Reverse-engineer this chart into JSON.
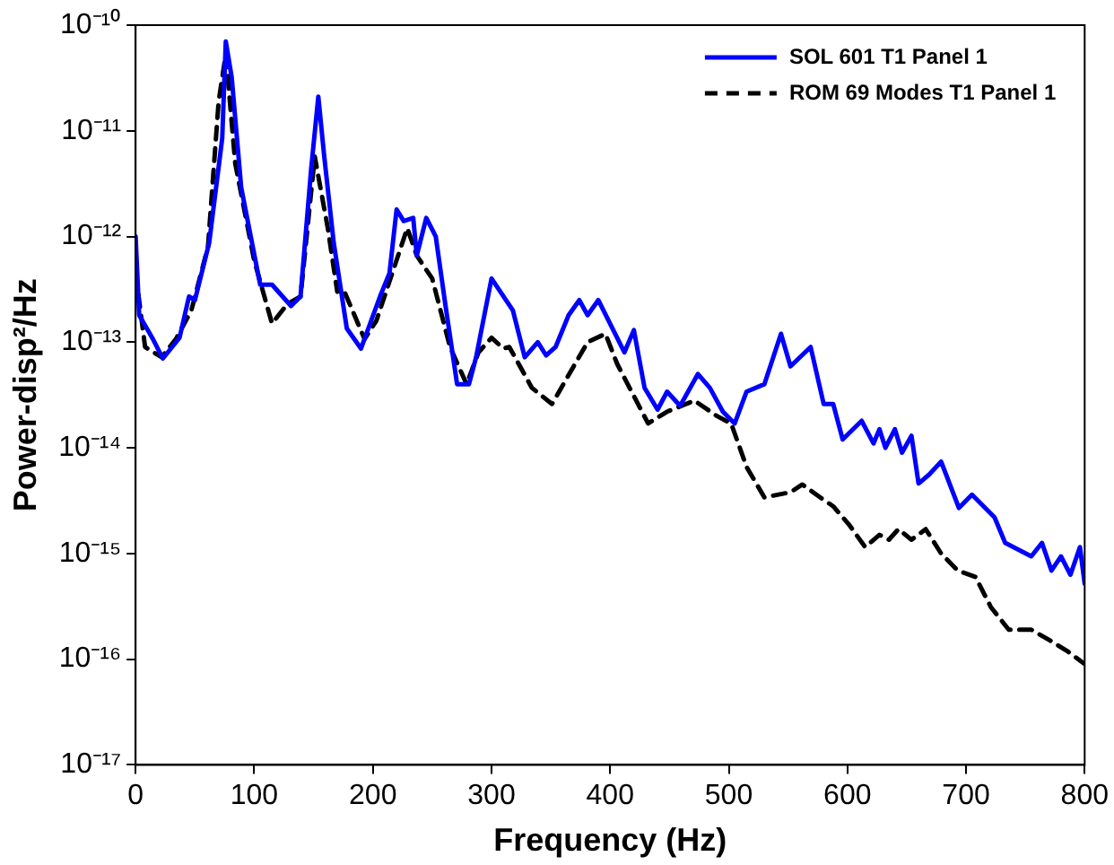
{
  "chart_data": {
    "type": "line",
    "xlabel": "Frequency (Hz)",
    "ylabel": "Power-disp²/Hz",
    "log": "y",
    "grid": false,
    "legend": "top right",
    "marker": "none",
    "xlim": [
      0,
      800
    ],
    "xticks": [
      0,
      100,
      200,
      300,
      400,
      500,
      600,
      700,
      800
    ],
    "ylim": [
      1e-17,
      1e-10
    ],
    "yticks": [
      {
        "value": 1e-17,
        "label": "10⁻¹⁷"
      },
      {
        "value": 1e-16,
        "label": "10⁻¹⁶"
      },
      {
        "value": 1e-15,
        "label": "10⁻¹⁵"
      },
      {
        "value": 1e-14,
        "label": "10⁻¹⁴"
      },
      {
        "value": 1e-13,
        "label": "10⁻¹³"
      },
      {
        "value": 1e-12,
        "label": "10⁻¹²"
      },
      {
        "value": 1e-11,
        "label": "10⁻¹¹"
      },
      {
        "value": 1e-10,
        "label": "10⁻¹⁰"
      }
    ],
    "series": [
      {
        "name": "SOL 601 T1 Panel 1",
        "color": "#0000ff",
        "line_style": "solid",
        "x": [
          0,
          3,
          14,
          23,
          37,
          45,
          50,
          62,
          73,
          76,
          81,
          89,
          105,
          115,
          131,
          139,
          148,
          154,
          159,
          167,
          178,
          190,
          206,
          214,
          220,
          226,
          234,
          237,
          245,
          253,
          261,
          271,
          281,
          287,
          300,
          318,
          328,
          339,
          346,
          354,
          365,
          374,
          381,
          390,
          412,
          420,
          429,
          440,
          448,
          459,
          474,
          484,
          495,
          505,
          515,
          530,
          544,
          552,
          569,
          580,
          588,
          596,
          612,
          622,
          627,
          632,
          640,
          646,
          654,
          660,
          669,
          679,
          694,
          705,
          724,
          733,
          755,
          764,
          772,
          780,
          788,
          796,
          800
        ],
        "values": [
          1e-12,
          1.8e-13,
          1.1e-13,
          7e-14,
          1.1e-13,
          2.7e-13,
          2.5e-13,
          8.7e-13,
          8.5e-12,
          7e-11,
          3.2e-11,
          2.9e-12,
          3.5e-13,
          3.5e-13,
          2.2e-13,
          2.7e-13,
          4.4e-12,
          2.1e-11,
          5.7e-12,
          8.7e-13,
          1.35e-13,
          8.7e-14,
          2.7e-13,
          4.5e-13,
          1.8e-12,
          1.4e-12,
          1.5e-12,
          6.6e-13,
          1.5e-12,
          1e-12,
          2.3e-13,
          4e-14,
          4e-14,
          7.2e-14,
          4e-13,
          2e-13,
          7.2e-14,
          1e-13,
          7.5e-14,
          9e-14,
          1.8e-13,
          2.5e-13,
          1.8e-13,
          2.5e-13,
          8e-14,
          1.3e-13,
          3.7e-14,
          2.3e-14,
          3.4e-14,
          2.5e-14,
          5e-14,
          3.7e-14,
          2.2e-14,
          1.7e-14,
          3.4e-14,
          4e-14,
          1.2e-13,
          5.9e-14,
          9e-14,
          2.6e-14,
          2.6e-14,
          1.2e-14,
          1.8e-14,
          1.1e-14,
          1.5e-14,
          1e-14,
          1.5e-14,
          9e-15,
          1.3e-14,
          4.6e-15,
          5.6e-15,
          7.4e-15,
          2.7e-15,
          3.6e-15,
          2.2e-15,
          1.26e-15,
          9.4e-16,
          1.26e-15,
          6.9e-16,
          9.4e-16,
          6.3e-16,
          1.15e-15,
          5.2e-16
        ]
      },
      {
        "name": "ROM 69 Modes T1 Panel 1",
        "color": "#000000",
        "line_style": "dashed",
        "x": [
          0,
          8,
          22,
          34,
          47,
          61,
          70,
          76,
          84,
          100,
          115,
          128,
          139,
          151,
          162,
          170,
          175,
          193,
          203,
          229,
          237,
          250,
          265,
          279,
          289,
          300,
          310,
          315,
          334,
          351,
          381,
          396,
          406,
          432,
          448,
          471,
          490,
          502,
          515,
          530,
          552,
          562,
          577,
          588,
          601,
          615,
          627,
          635,
          643,
          654,
          666,
          679,
          693,
          708,
          721,
          736,
          755,
          771,
          785,
          800
        ],
        "values": [
          4.5e-13,
          9e-14,
          7.2e-14,
          1.07e-13,
          2e-13,
          8e-13,
          1.9e-11,
          5.3e-11,
          4.9e-12,
          5.9e-13,
          1.5e-13,
          2.3e-13,
          2.7e-13,
          5.7e-12,
          1.2e-12,
          3e-13,
          3.2e-13,
          1.07e-13,
          1.6e-13,
          1.2e-12,
          6.6e-13,
          4e-13,
          9e-14,
          4e-14,
          8e-14,
          1.1e-13,
          8.7e-14,
          9e-14,
          3.7e-14,
          2.6e-14,
          1e-13,
          1.2e-13,
          6.2e-14,
          1.7e-14,
          2.2e-14,
          2.8e-14,
          2e-14,
          1.7e-14,
          6.6e-15,
          3.4e-15,
          3.8e-15,
          4.5e-15,
          3.4e-15,
          2.8e-15,
          1.9e-15,
          1.15e-15,
          1.5e-15,
          1.35e-15,
          1.7e-15,
          1.35e-15,
          1.7e-15,
          1e-15,
          6.9e-16,
          6e-16,
          3.1e-16,
          1.9e-16,
          1.9e-16,
          1.5e-16,
          1.2e-16,
          9e-17
        ]
      }
    ]
  }
}
